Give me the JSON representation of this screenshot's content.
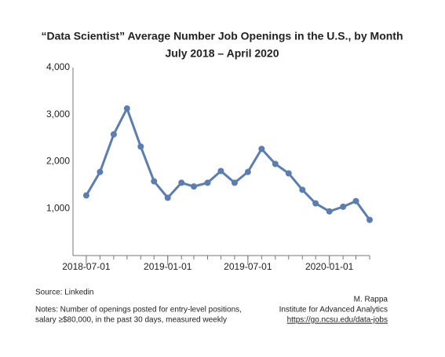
{
  "chart_data": {
    "type": "line",
    "title": "“Data Scientist” Average Number Job Openings in the U.S., by Month",
    "subtitle": "July 2018 – April 2020",
    "x": [
      "2018-07-01",
      "2018-08-01",
      "2018-09-01",
      "2018-10-01",
      "2018-11-01",
      "2018-12-01",
      "2019-01-01",
      "2019-02-01",
      "2019-03-01",
      "2019-04-01",
      "2019-05-01",
      "2019-06-01",
      "2019-07-01",
      "2019-08-01",
      "2019-09-01",
      "2019-10-01",
      "2019-11-01",
      "2019-12-01",
      "2020-01-01",
      "2020-02-01",
      "2020-03-01",
      "2020-04-01"
    ],
    "series": [
      {
        "color": "#5b7db0",
        "values": [
          1280,
          1780,
          2580,
          3130,
          2320,
          1580,
          1230,
          1550,
          1470,
          1550,
          1800,
          1550,
          1780,
          2270,
          1950,
          1750,
          1400,
          1110,
          940,
          1040,
          1160,
          760
        ]
      }
    ],
    "xlim": [
      "2018-06-01",
      "2020-04-01"
    ],
    "xticks": [
      "2018-07-01",
      "2019-01-01",
      "2019-07-01",
      "2020-01-01"
    ],
    "ylim": [
      0,
      4000
    ],
    "yticks": [
      {
        "value": 1000,
        "label": "1,000"
      },
      {
        "value": 2000,
        "label": "2,000"
      },
      {
        "value": 3000,
        "label": "3,000"
      },
      {
        "value": 4000,
        "label": "4,000"
      }
    ],
    "grid": false,
    "source": "Source: Linkedin",
    "notes": [
      "Notes: Number of openings posted for entry-level positions,",
      "salary ≥$80,000, in the past 30 days, measured weekly"
    ],
    "credits": [
      "M. Rappa",
      "Institute for Advanced Analytics",
      "https://go.ncsu.edu/data-jobs"
    ]
  }
}
